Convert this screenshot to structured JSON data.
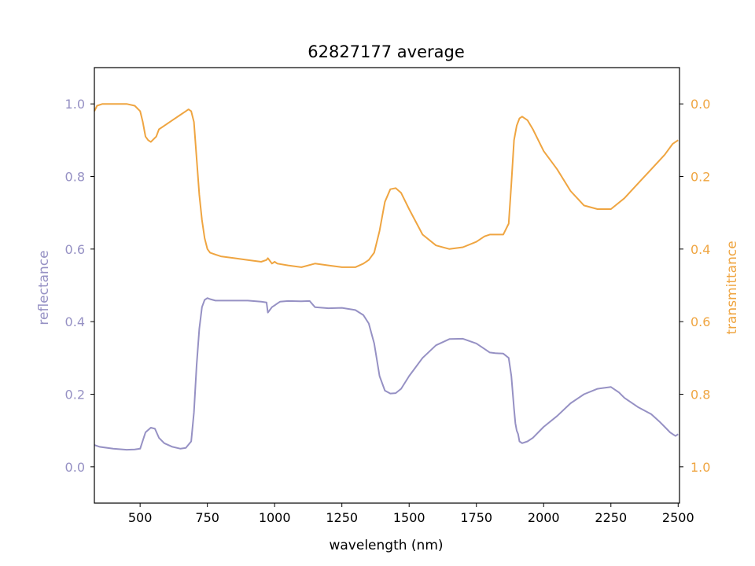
{
  "chart_data": {
    "type": "line",
    "title": "62827177 average",
    "xlabel": "wavelength (nm)",
    "ylabel_left": "reflectance",
    "ylabel_right": "transmittance",
    "xlim": [
      330,
      2505
    ],
    "ylim_left": [
      -0.1,
      1.1
    ],
    "ylim_right": [
      1.1,
      -0.1
    ],
    "right_axis_inverted": true,
    "grid": false,
    "colors": {
      "reflectance": "#9691C4",
      "transmittance": "#EFA541",
      "axes": "#000000"
    },
    "x_ticks": [
      {
        "value": 500,
        "label": "500"
      },
      {
        "value": 750,
        "label": "750"
      },
      {
        "value": 1000,
        "label": "1000"
      },
      {
        "value": 1250,
        "label": "1250"
      },
      {
        "value": 1500,
        "label": "1500"
      },
      {
        "value": 1750,
        "label": "1750"
      },
      {
        "value": 2000,
        "label": "2000"
      },
      {
        "value": 2250,
        "label": "2250"
      },
      {
        "value": 2500,
        "label": "2500"
      }
    ],
    "y_ticks_left": [
      {
        "value": 0.0,
        "label": "0.0"
      },
      {
        "value": 0.2,
        "label": "0.2"
      },
      {
        "value": 0.4,
        "label": "0.4"
      },
      {
        "value": 0.6,
        "label": "0.6"
      },
      {
        "value": 0.8,
        "label": "0.8"
      },
      {
        "value": 1.0,
        "label": "1.0"
      }
    ],
    "y_ticks_right": [
      {
        "value": 0.0,
        "label": "0.0"
      },
      {
        "value": 0.2,
        "label": "0.2"
      },
      {
        "value": 0.4,
        "label": "0.4"
      },
      {
        "value": 0.6,
        "label": "0.6"
      },
      {
        "value": 0.8,
        "label": "0.8"
      },
      {
        "value": 1.0,
        "label": "1.0"
      }
    ],
    "series": [
      {
        "key": "reflectance",
        "axis": "left",
        "x": [
          330,
          350,
          400,
          450,
          480,
          500,
          520,
          540,
          555,
          570,
          590,
          620,
          650,
          670,
          690,
          700,
          710,
          720,
          730,
          740,
          750,
          760,
          780,
          800,
          850,
          900,
          950,
          970,
          975,
          990,
          1000,
          1010,
          1020,
          1050,
          1100,
          1130,
          1150,
          1200,
          1250,
          1300,
          1330,
          1350,
          1370,
          1390,
          1410,
          1430,
          1450,
          1470,
          1500,
          1550,
          1600,
          1650,
          1700,
          1750,
          1780,
          1800,
          1820,
          1850,
          1870,
          1880,
          1890,
          1895,
          1900,
          1905,
          1910,
          1920,
          1940,
          1960,
          2000,
          2050,
          2100,
          2150,
          2200,
          2250,
          2280,
          2300,
          2350,
          2400,
          2430,
          2450,
          2470,
          2480,
          2490,
          2500
        ],
        "y": [
          0.06,
          0.055,
          0.05,
          0.047,
          0.048,
          0.05,
          0.095,
          0.108,
          0.105,
          0.08,
          0.065,
          0.055,
          0.05,
          0.052,
          0.07,
          0.15,
          0.28,
          0.38,
          0.44,
          0.46,
          0.465,
          0.462,
          0.458,
          0.458,
          0.458,
          0.458,
          0.455,
          0.453,
          0.425,
          0.44,
          0.445,
          0.45,
          0.455,
          0.457,
          0.456,
          0.457,
          0.44,
          0.437,
          0.438,
          0.432,
          0.418,
          0.395,
          0.34,
          0.25,
          0.21,
          0.202,
          0.203,
          0.215,
          0.25,
          0.3,
          0.335,
          0.352,
          0.353,
          0.34,
          0.325,
          0.315,
          0.313,
          0.312,
          0.3,
          0.25,
          0.16,
          0.12,
          0.1,
          0.09,
          0.07,
          0.065,
          0.07,
          0.08,
          0.11,
          0.14,
          0.175,
          0.2,
          0.215,
          0.22,
          0.205,
          0.19,
          0.165,
          0.145,
          0.125,
          0.11,
          0.095,
          0.09,
          0.085,
          0.09
        ]
      },
      {
        "key": "transmittance",
        "axis": "right",
        "x": [
          330,
          340,
          360,
          400,
          450,
          480,
          500,
          510,
          520,
          530,
          540,
          560,
          570,
          590,
          620,
          650,
          670,
          680,
          690,
          700,
          710,
          720,
          730,
          740,
          750,
          760,
          780,
          800,
          850,
          900,
          950,
          970,
          975,
          990,
          1000,
          1010,
          1050,
          1100,
          1150,
          1200,
          1250,
          1300,
          1330,
          1350,
          1370,
          1390,
          1410,
          1430,
          1450,
          1470,
          1500,
          1550,
          1600,
          1650,
          1700,
          1750,
          1780,
          1800,
          1830,
          1850,
          1870,
          1880,
          1890,
          1895,
          1900,
          1910,
          1920,
          1940,
          1960,
          2000,
          2050,
          2100,
          2150,
          2200,
          2250,
          2300,
          2350,
          2400,
          2450,
          2480,
          2500
        ],
        "y": [
          0.02,
          0.005,
          0.0,
          0.0,
          0.0,
          0.005,
          0.02,
          0.05,
          0.09,
          0.1,
          0.105,
          0.09,
          0.07,
          0.06,
          0.045,
          0.03,
          0.02,
          0.015,
          0.02,
          0.05,
          0.15,
          0.25,
          0.32,
          0.37,
          0.4,
          0.41,
          0.415,
          0.42,
          0.425,
          0.43,
          0.435,
          0.43,
          0.425,
          0.44,
          0.435,
          0.44,
          0.445,
          0.45,
          0.44,
          0.445,
          0.45,
          0.45,
          0.44,
          0.43,
          0.41,
          0.35,
          0.27,
          0.235,
          0.232,
          0.245,
          0.29,
          0.36,
          0.39,
          0.4,
          0.395,
          0.38,
          0.365,
          0.36,
          0.36,
          0.36,
          0.33,
          0.22,
          0.1,
          0.08,
          0.06,
          0.04,
          0.035,
          0.045,
          0.07,
          0.13,
          0.18,
          0.24,
          0.28,
          0.29,
          0.29,
          0.26,
          0.22,
          0.18,
          0.14,
          0.11,
          0.1
        ]
      }
    ]
  }
}
